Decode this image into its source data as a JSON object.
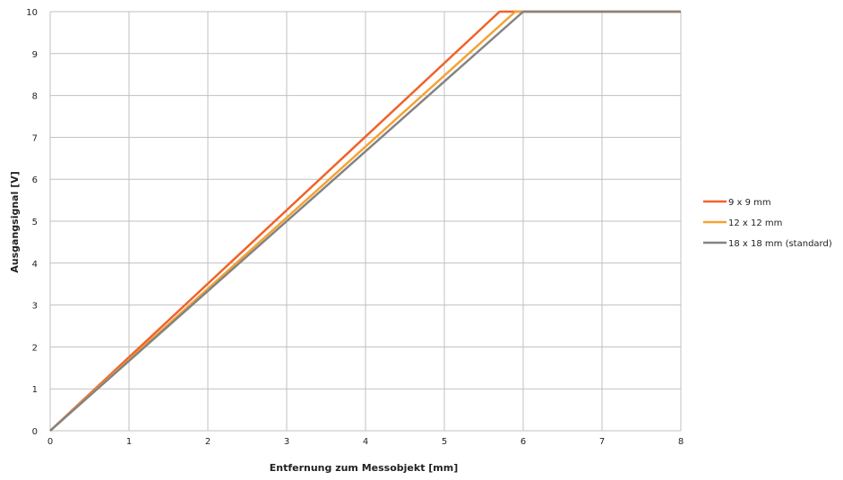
{
  "chart_data": {
    "type": "line",
    "title": "",
    "xlabel": "Entfernung zum Messobjekt [mm]",
    "ylabel": "Ausgangsignal [V]",
    "xlim": [
      0,
      8
    ],
    "ylim": [
      0,
      10
    ],
    "x_ticks": [
      "0",
      "1",
      "2",
      "3",
      "4",
      "5",
      "6",
      "7",
      "8"
    ],
    "y_ticks": [
      "0",
      "1",
      "2",
      "3",
      "4",
      "5",
      "6",
      "7",
      "8",
      "9",
      "10"
    ],
    "grid": true,
    "legend_position": "right",
    "series": [
      {
        "name": "9 x 9 mm",
        "color": "#f0622a",
        "points": [
          [
            0,
            0
          ],
          [
            5.7,
            10
          ],
          [
            8,
            10
          ]
        ]
      },
      {
        "name": "12 x 12 mm",
        "color": "#f5a232",
        "points": [
          [
            0,
            0
          ],
          [
            5.9,
            10
          ],
          [
            8,
            10
          ]
        ]
      },
      {
        "name": "18 x 18  mm (standard)",
        "color": "#838383",
        "points": [
          [
            0,
            0
          ],
          [
            6,
            10
          ],
          [
            8,
            10
          ]
        ]
      }
    ]
  }
}
